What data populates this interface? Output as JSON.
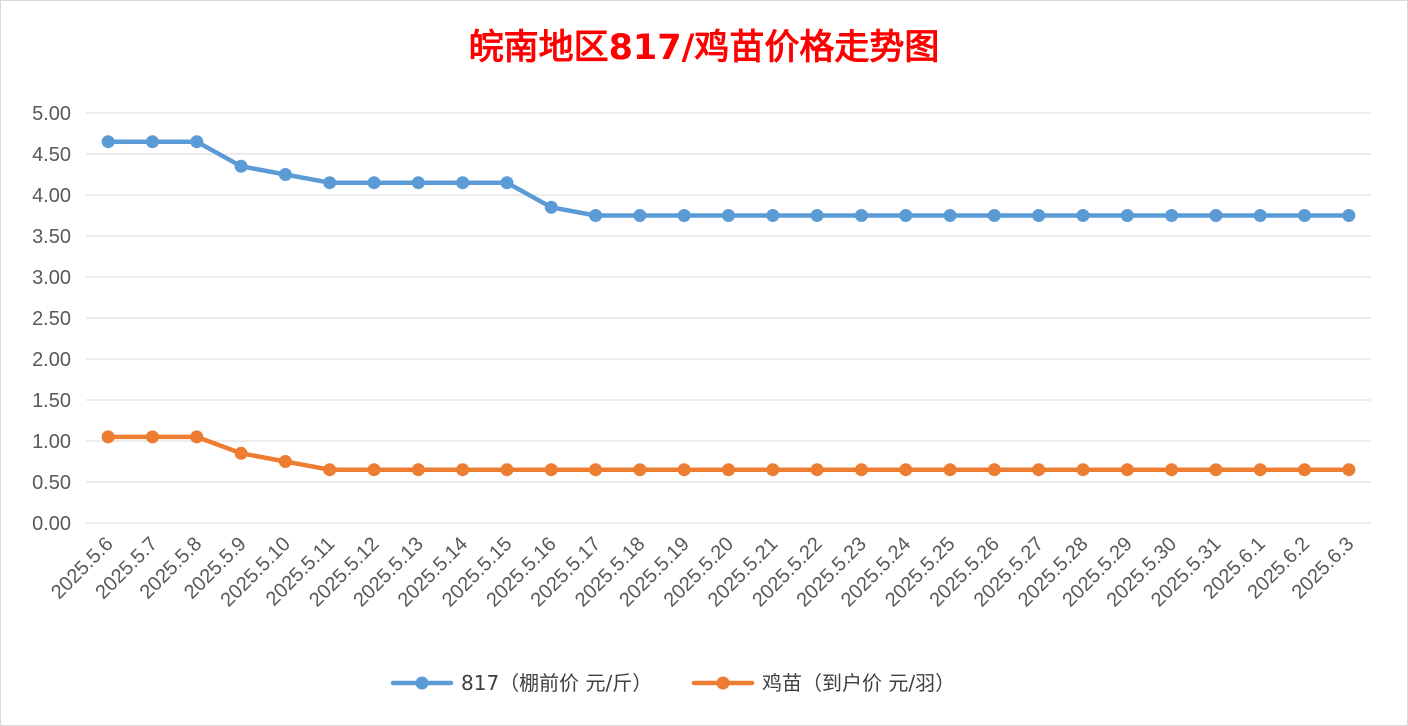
{
  "chart_data": {
    "type": "line",
    "title": "皖南地区817/鸡苗价格走势图",
    "xlabel": "",
    "ylabel": "",
    "categories": [
      "2025.5.6",
      "2025.5.7",
      "2025.5.8",
      "2025.5.9",
      "2025.5.10",
      "2025.5.11",
      "2025.5.12",
      "2025.5.13",
      "2025.5.14",
      "2025.5.15",
      "2025.5.16",
      "2025.5.17",
      "2025.5.18",
      "2025.5.19",
      "2025.5.20",
      "2025.5.21",
      "2025.5.22",
      "2025.5.23",
      "2025.5.24",
      "2025.5.25",
      "2025.5.26",
      "2025.5.27",
      "2025.5.28",
      "2025.5.29",
      "2025.5.30",
      "2025.5.31",
      "2025.6.1",
      "2025.6.2",
      "2025.6.3"
    ],
    "y_ticks": [
      "0.00",
      "0.50",
      "1.00",
      "1.50",
      "2.00",
      "2.50",
      "3.00",
      "3.50",
      "4.00",
      "4.50",
      "5.00"
    ],
    "ylim": [
      0,
      5
    ],
    "grid": true,
    "legend_position": "bottom",
    "series": [
      {
        "name": "817（棚前价 元/斤）",
        "color": "#5b9bd5",
        "values": [
          4.65,
          4.65,
          4.65,
          4.35,
          4.25,
          4.15,
          4.15,
          4.15,
          4.15,
          4.15,
          3.85,
          3.75,
          3.75,
          3.75,
          3.75,
          3.75,
          3.75,
          3.75,
          3.75,
          3.75,
          3.75,
          3.75,
          3.75,
          3.75,
          3.75,
          3.75,
          3.75,
          3.75,
          3.75
        ]
      },
      {
        "name": "鸡苗（到户价 元/羽）",
        "color": "#ed7d31",
        "values": [
          1.05,
          1.05,
          1.05,
          0.85,
          0.75,
          0.65,
          0.65,
          0.65,
          0.65,
          0.65,
          0.65,
          0.65,
          0.65,
          0.65,
          0.65,
          0.65,
          0.65,
          0.65,
          0.65,
          0.65,
          0.65,
          0.65,
          0.65,
          0.65,
          0.65,
          0.65,
          0.65,
          0.65,
          0.65
        ]
      }
    ]
  }
}
